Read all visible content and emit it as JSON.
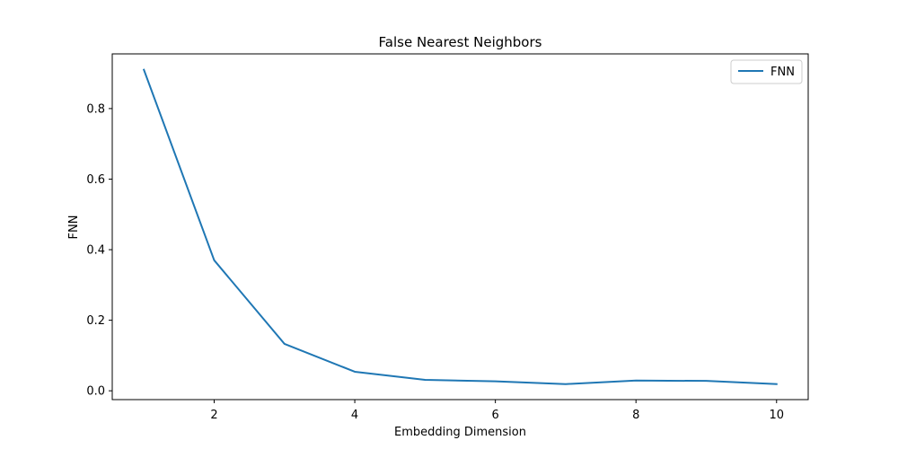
{
  "chart_data": {
    "type": "line",
    "title": "False Nearest Neighbors",
    "xlabel": "Embedding Dimension",
    "ylabel": "FNN",
    "xlim": [
      0.55,
      10.45
    ],
    "ylim": [
      -0.025,
      0.955
    ],
    "xticks": [
      2,
      4,
      6,
      8,
      10
    ],
    "yticks": [
      0.0,
      0.2,
      0.4,
      0.6,
      0.8
    ],
    "grid": false,
    "legend_position": "top-right",
    "series": [
      {
        "name": "FNN",
        "color": "#1f77b4",
        "x": [
          1,
          2,
          3,
          4,
          5,
          6,
          7,
          8,
          9,
          10
        ],
        "y": [
          0.91,
          0.37,
          0.133,
          0.054,
          0.031,
          0.027,
          0.019,
          0.029,
          0.028,
          0.019
        ]
      }
    ]
  }
}
